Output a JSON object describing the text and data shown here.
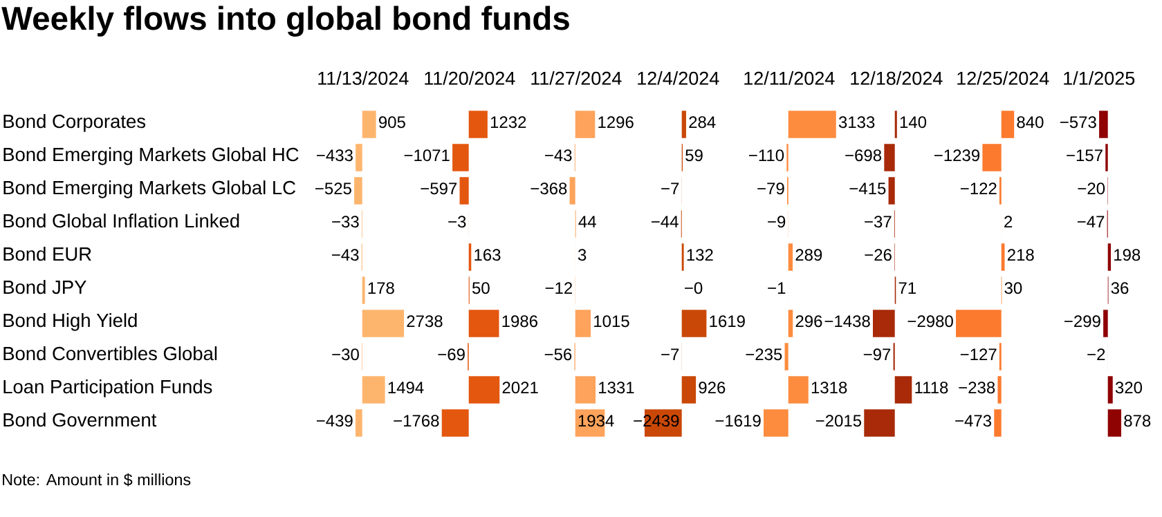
{
  "chart_data": [
    {
      "type": "other",
      "title": "Weekly flows into global bond funds",
      "annotations": [
        "Note: Amount in $ millions"
      ]
    },
    {
      "type": "bar",
      "orientation": "horizontal",
      "title": "11/13/2024",
      "tick_labels": "y",
      "color": "#fdb56e",
      "categories": [
        "Bond Corporates",
        "Bond Emerging Markets Global HC",
        "Bond Emerging Markets Global LC",
        "Bond Global Inflation Linked",
        "Bond EUR",
        "Bond JPY",
        "Bond High Yield",
        "Bond Convertibles Global",
        "Loan Participation Funds",
        "Bond Government"
      ],
      "values": [
        905,
        -433,
        -525,
        -33,
        -43,
        178,
        2738,
        -30,
        1494,
        -439
      ],
      "value_labels": [
        "905",
        "−433",
        "−525",
        "−33",
        "−43",
        "178",
        "2738",
        "−30",
        "1494",
        "−439"
      ]
    },
    {
      "type": "bar",
      "orientation": "horizontal",
      "title": "11/20/2024",
      "tick_labels": false,
      "color": "#e4570f",
      "categories": [
        null,
        null,
        null,
        null,
        null,
        null,
        null,
        null,
        null,
        null
      ],
      "values": [
        1232,
        -1071,
        -597,
        -3,
        163,
        50,
        1986,
        -69,
        2021,
        -1768
      ],
      "value_labels": [
        "1232",
        "−1071",
        "−597",
        "−3",
        "163",
        "50",
        "1986",
        "−69",
        "2021",
        "−1768"
      ]
    },
    {
      "type": "bar",
      "orientation": "horizontal",
      "title": "11/27/2024",
      "tick_labels": false,
      "color": "#fda35b",
      "categories": [
        null,
        null,
        null,
        null,
        null,
        null,
        null,
        null,
        null,
        null
      ],
      "values": [
        1296,
        -43,
        -368,
        44,
        3,
        -12,
        1015,
        -56,
        1331,
        1934
      ],
      "value_labels": [
        "1296",
        "−43",
        "−368",
        "44",
        "3",
        "−12",
        "1015",
        "−56",
        "1331",
        "1934"
      ]
    },
    {
      "type": "bar",
      "orientation": "horizontal",
      "title": "12/4/2024",
      "tick_labels": false,
      "color": "#ca4807",
      "categories": [
        null,
        null,
        null,
        null,
        null,
        null,
        null,
        null,
        null,
        null
      ],
      "values": [
        284,
        59,
        -7,
        -44,
        132,
        0,
        1619,
        -7,
        926,
        -2439
      ],
      "value_labels": [
        "284",
        "59",
        "−7",
        "−44",
        "132",
        "−0",
        "1619",
        "−7",
        "926",
        "−2439"
      ]
    },
    {
      "type": "bar",
      "orientation": "horizontal",
      "title": "12/11/2024",
      "tick_labels": false,
      "color": "#fd8c3f",
      "categories": [
        null,
        null,
        null,
        null,
        null,
        null,
        null,
        null,
        null,
        null
      ],
      "values": [
        3133,
        -110,
        -79,
        -9,
        289,
        -1,
        296,
        -235,
        1318,
        -1619
      ],
      "value_labels": [
        "3133",
        "−110",
        "−79",
        "−9",
        "289",
        "−1",
        "296",
        "−235",
        "1318",
        "−1619"
      ]
    },
    {
      "type": "bar",
      "orientation": "horizontal",
      "title": "12/18/2024",
      "tick_labels": false,
      "color": "#a82a08",
      "categories": [
        null,
        null,
        null,
        null,
        null,
        null,
        null,
        null,
        null,
        null
      ],
      "values": [
        140,
        -698,
        -415,
        -37,
        -26,
        71,
        -1438,
        -97,
        1118,
        -2015
      ],
      "value_labels": [
        "140",
        "−698",
        "−415",
        "−37",
        "−26",
        "71",
        "−1438",
        "−97",
        "1118",
        "−2015"
      ]
    },
    {
      "type": "bar",
      "orientation": "horizontal",
      "title": "12/25/2024",
      "tick_labels": false,
      "color": "#fc7a2e",
      "categories": [
        null,
        null,
        null,
        null,
        null,
        null,
        null,
        null,
        null,
        null
      ],
      "values": [
        840,
        -1239,
        -122,
        2,
        218,
        30,
        -2980,
        -127,
        -238,
        -473
      ],
      "value_labels": [
        "840",
        "−1239",
        "−122",
        "2",
        "218",
        "30",
        "−2980",
        "−127",
        "−238",
        "−473"
      ]
    },
    {
      "type": "bar",
      "orientation": "horizontal",
      "title": "1/1/2025",
      "tick_labels": false,
      "color": "#8f0303",
      "categories": [
        null,
        null,
        null,
        null,
        null,
        null,
        null,
        null,
        null,
        null
      ],
      "values": [
        -573,
        -157,
        -20,
        -47,
        198,
        36,
        -299,
        -2,
        320,
        878
      ],
      "value_labels": [
        "−573",
        "−157",
        "−20",
        "−47",
        "198",
        "36",
        "−299",
        "−2",
        "320",
        "878"
      ]
    }
  ]
}
